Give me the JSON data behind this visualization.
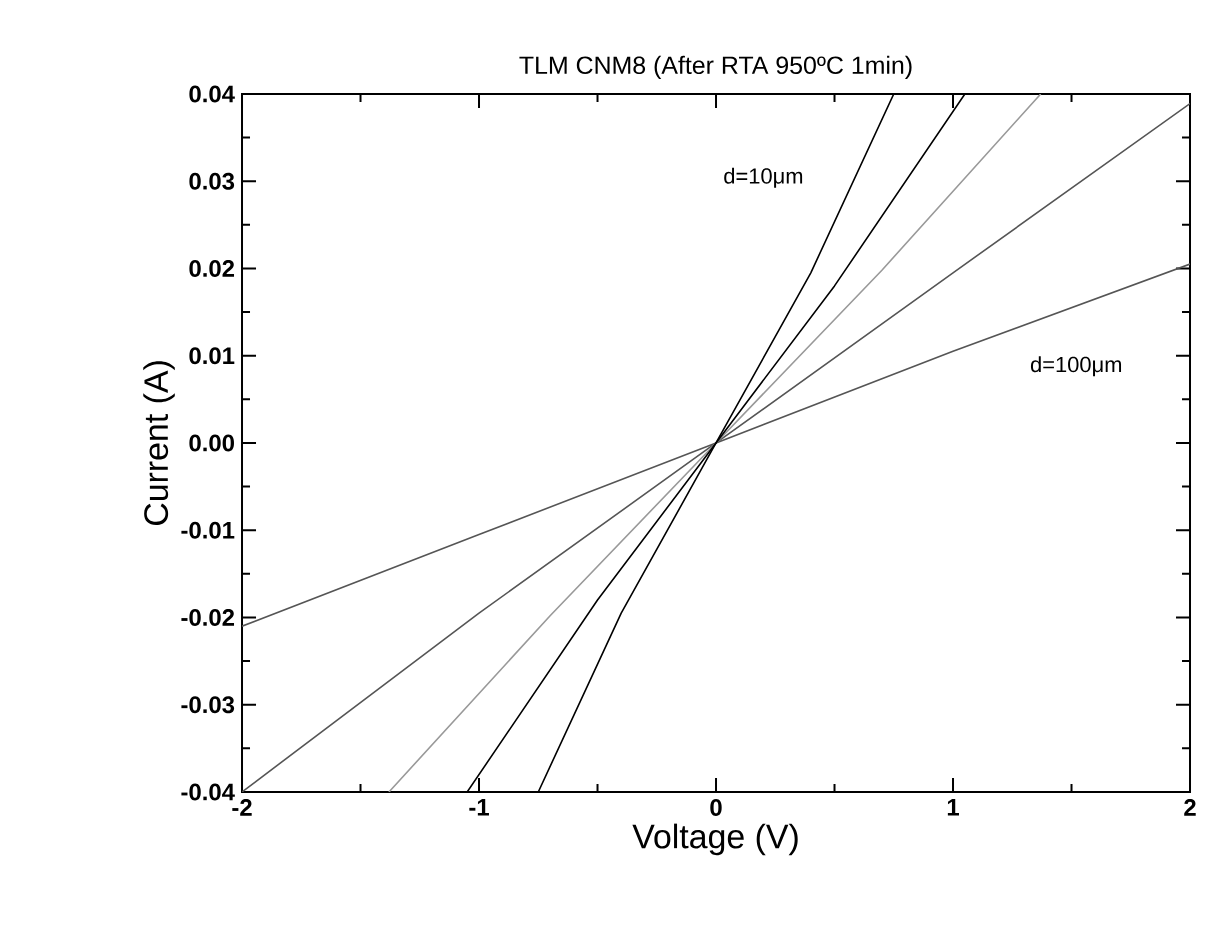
{
  "chart_data": {
    "type": "line",
    "title": "TLM CNM8 (After RTA 950ºC 1min)",
    "xlabel": "Voltage (V)",
    "ylabel": "Current (A)",
    "xlim": [
      -2,
      2
    ],
    "xticks": [
      -2,
      -1,
      0,
      1,
      2
    ],
    "ylim": [
      -0.04,
      0.04
    ],
    "yticks": [
      {
        "value": -0.04,
        "label": "-0.04"
      },
      {
        "value": -0.03,
        "label": "-0.03"
      },
      {
        "value": -0.02,
        "label": "-0.02"
      },
      {
        "value": -0.01,
        "label": "-0.01"
      },
      {
        "value": 0,
        "label": "0.00"
      },
      {
        "value": 0.01,
        "label": "0.01"
      },
      {
        "value": 0.02,
        "label": "0.02"
      },
      {
        "value": 0.03,
        "label": "0.03"
      },
      {
        "value": 0.04,
        "label": "0.04"
      }
    ],
    "series": [
      {
        "color": "#555555",
        "x": [
          -2,
          -1,
          0,
          1,
          2
        ],
        "values": [
          -0.021,
          -0.0105,
          0,
          0.0105,
          0.0205
        ]
      },
      {
        "color": "#555555",
        "x": [
          -2,
          -1,
          0,
          1,
          2
        ],
        "values": [
          -0.04,
          -0.0195,
          0,
          0.0195,
          0.0389
        ]
      },
      {
        "color": "#999999",
        "x": [
          -1.38,
          -0.7,
          0,
          0.7,
          1.37
        ],
        "values": [
          -0.04,
          -0.0198,
          0,
          0.0198,
          0.04
        ]
      },
      {
        "color": "#000000",
        "x": [
          -1.05,
          -0.5,
          0,
          0.5,
          1.05
        ],
        "values": [
          -0.04,
          -0.018,
          0,
          0.018,
          0.04
        ]
      },
      {
        "color": "#000000",
        "x": [
          -0.75,
          -0.4,
          0,
          0.4,
          0.75
        ],
        "values": [
          -0.04,
          -0.0195,
          0,
          0.0195,
          0.04
        ]
      }
    ],
    "annotations": [
      "d=10μm",
      "d=100μm"
    ]
  }
}
